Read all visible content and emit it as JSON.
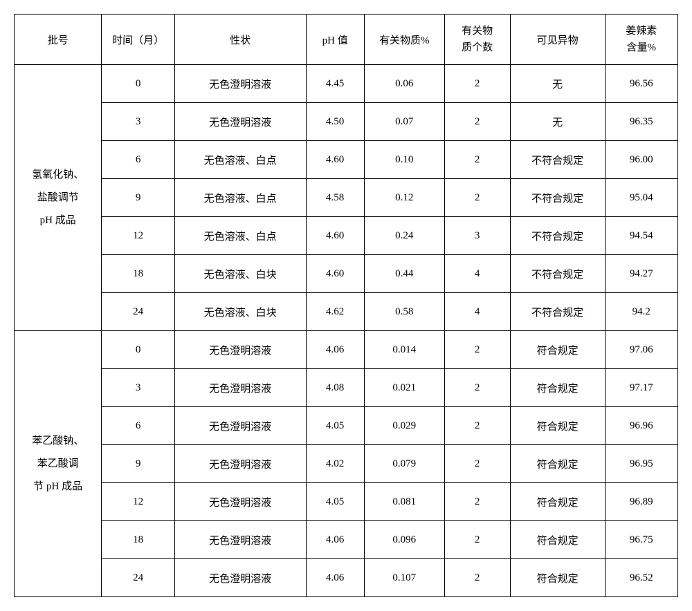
{
  "headers": {
    "batch": "批号",
    "time": "时间（月）",
    "appearance": "性状",
    "ph": "pH 值",
    "related": "有关物质%",
    "count_l1": "有关物",
    "count_l2": "质个数",
    "foreign": "可见异物",
    "gingerol_l1": "姜辣素",
    "gingerol_l2": "含量%"
  },
  "group1": {
    "label_l1": "氢氧化钠、",
    "label_l2": "盐酸调节",
    "label_l3": "pH 成品",
    "rows": [
      {
        "time": "0",
        "appearance": "无色澄明溶液",
        "ph": "4.45",
        "related": "0.06",
        "count": "2",
        "foreign": "无",
        "gingerol": "96.56"
      },
      {
        "time": "3",
        "appearance": "无色澄明溶液",
        "ph": "4.50",
        "related": "0.07",
        "count": "2",
        "foreign": "无",
        "gingerol": "96.35"
      },
      {
        "time": "6",
        "appearance": "无色溶液、白点",
        "ph": "4.60",
        "related": "0.10",
        "count": "2",
        "foreign": "不符合规定",
        "gingerol": "96.00"
      },
      {
        "time": "9",
        "appearance": "无色溶液、白点",
        "ph": "4.58",
        "related": "0.12",
        "count": "2",
        "foreign": "不符合规定",
        "gingerol": "95.04"
      },
      {
        "time": "12",
        "appearance": "无色溶液、白点",
        "ph": "4.60",
        "related": "0.24",
        "count": "3",
        "foreign": "不符合规定",
        "gingerol": "94.54"
      },
      {
        "time": "18",
        "appearance": "无色溶液、白块",
        "ph": "4.60",
        "related": "0.44",
        "count": "4",
        "foreign": "不符合规定",
        "gingerol": "94.27"
      },
      {
        "time": "24",
        "appearance": "无色溶液、白块",
        "ph": "4.62",
        "related": "0.58",
        "count": "4",
        "foreign": "不符合规定",
        "gingerol": "94.2"
      }
    ]
  },
  "group2": {
    "label_l1": "苯乙酸钠、",
    "label_l2": "苯乙酸调",
    "label_l3": "节 pH 成品",
    "rows": [
      {
        "time": "0",
        "appearance": "无色澄明溶液",
        "ph": "4.06",
        "related": "0.014",
        "count": "2",
        "foreign": "符合规定",
        "gingerol": "97.06"
      },
      {
        "time": "3",
        "appearance": "无色澄明溶液",
        "ph": "4.08",
        "related": "0.021",
        "count": "2",
        "foreign": "符合规定",
        "gingerol": "97.17"
      },
      {
        "time": "6",
        "appearance": "无色澄明溶液",
        "ph": "4.05",
        "related": "0.029",
        "count": "2",
        "foreign": "符合规定",
        "gingerol": "96.96"
      },
      {
        "time": "9",
        "appearance": "无色澄明溶液",
        "ph": "4.02",
        "related": "0.079",
        "count": "2",
        "foreign": "符合规定",
        "gingerol": "96.95"
      },
      {
        "time": "12",
        "appearance": "无色澄明溶液",
        "ph": "4.05",
        "related": "0.081",
        "count": "2",
        "foreign": "符合规定",
        "gingerol": "96.89"
      },
      {
        "time": "18",
        "appearance": "无色澄明溶液",
        "ph": "4.06",
        "related": "0.096",
        "count": "2",
        "foreign": "符合规定",
        "gingerol": "96.75"
      },
      {
        "time": "24",
        "appearance": "无色澄明溶液",
        "ph": "4.06",
        "related": "0.107",
        "count": "2",
        "foreign": "符合规定",
        "gingerol": "96.52"
      }
    ]
  }
}
